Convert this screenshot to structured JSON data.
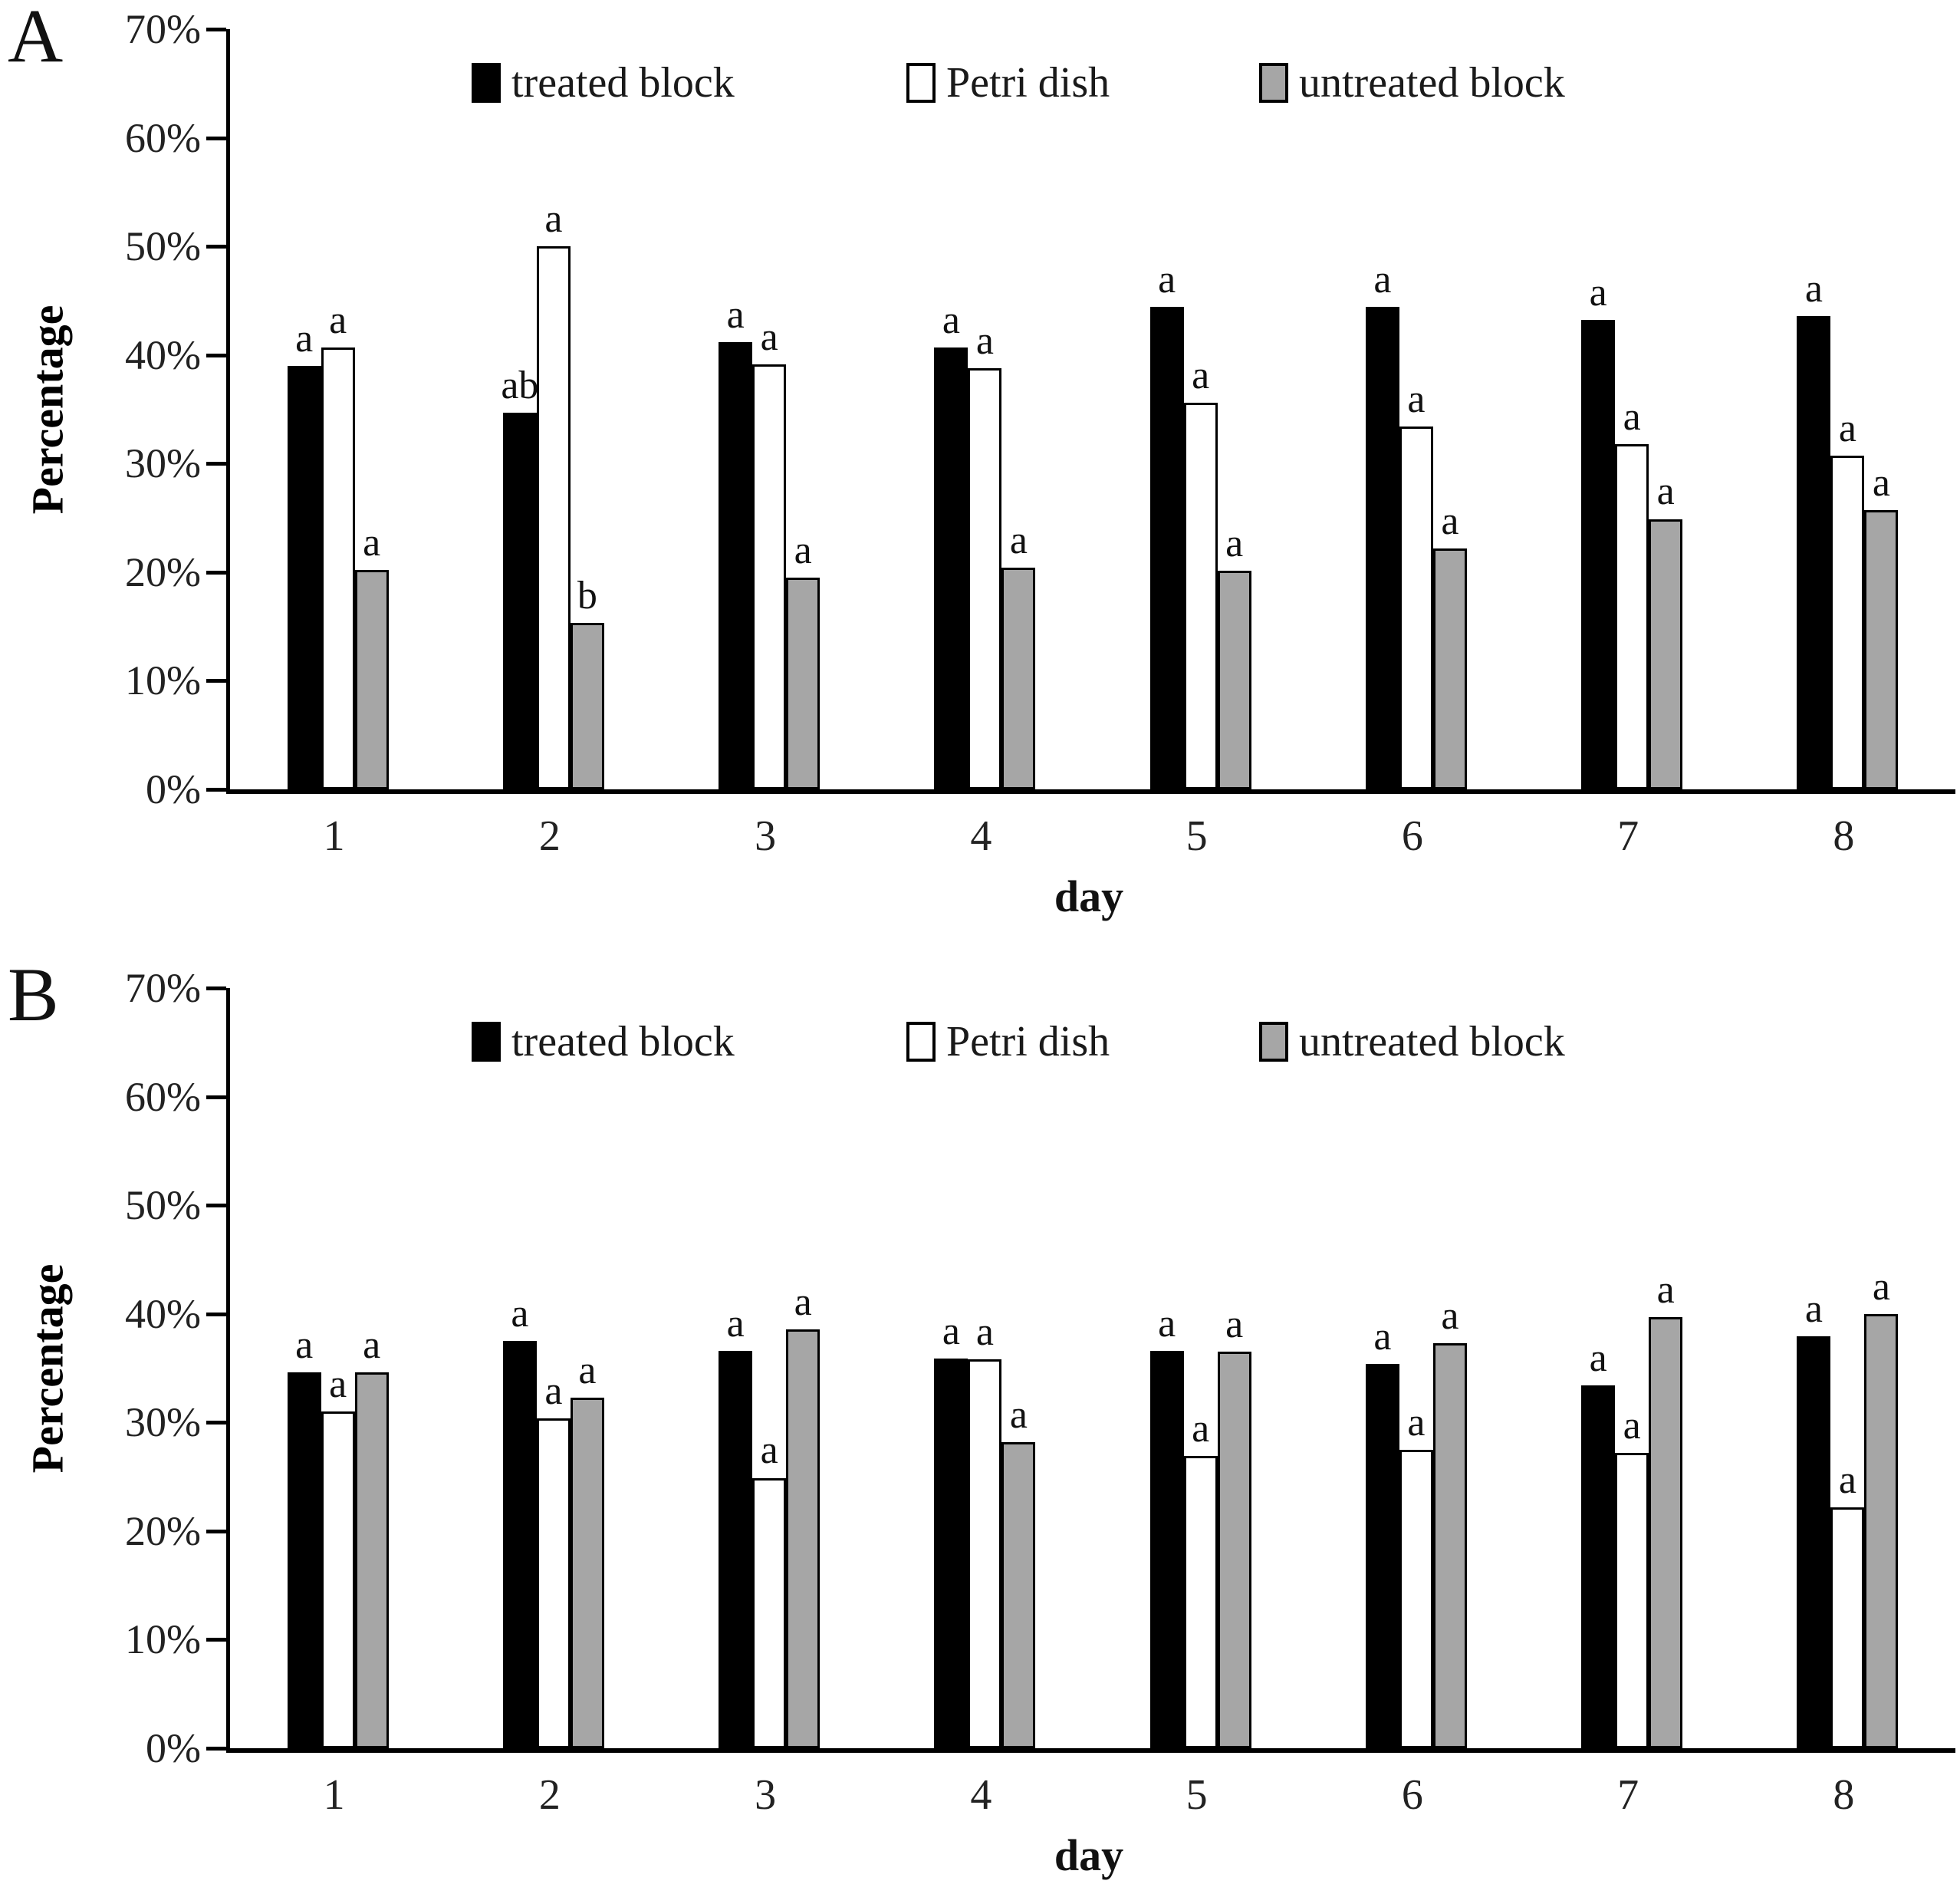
{
  "figure_title": "",
  "chart_data": [
    {
      "panel": "A",
      "type": "bar",
      "xlabel": "day",
      "ylabel": "Percentage",
      "ylim": [
        0,
        70
      ],
      "ytick_step": 10,
      "yticks": [
        "70%",
        "60%",
        "50%",
        "40%",
        "30%",
        "20%",
        "10%",
        "0%"
      ],
      "categories": [
        "1",
        "2",
        "3",
        "4",
        "5",
        "6",
        "7",
        "8"
      ],
      "grid": false,
      "legend_position": "top-center-inside",
      "series": [
        {
          "name": "treated block",
          "color": "#000000",
          "values": [
            39.0,
            34.7,
            41.2,
            40.7,
            44.4,
            44.4,
            43.2,
            43.6
          ],
          "letters": [
            "a",
            "ab",
            "a",
            "a",
            "a",
            "a",
            "a",
            "a"
          ]
        },
        {
          "name": "Petri dish",
          "color": "#ffffff",
          "values": [
            40.7,
            50.0,
            39.1,
            38.8,
            35.6,
            33.4,
            31.8,
            30.7
          ],
          "letters": [
            "a",
            "a",
            "a",
            "a",
            "a",
            "a",
            "a",
            "a"
          ]
        },
        {
          "name": "untreated block",
          "color": "#a6a6a6",
          "values": [
            20.2,
            15.3,
            19.5,
            20.4,
            20.1,
            22.2,
            24.9,
            25.7
          ],
          "letters": [
            "a",
            "b",
            "a",
            "a",
            "a",
            "a",
            "a",
            "a"
          ]
        }
      ]
    },
    {
      "panel": "B",
      "type": "bar",
      "xlabel": "day",
      "ylabel": "Percentage",
      "ylim": [
        0,
        70
      ],
      "ytick_step": 10,
      "yticks": [
        "70%",
        "60%",
        "50%",
        "40%",
        "30%",
        "20%",
        "10%",
        "0%"
      ],
      "categories": [
        "1",
        "2",
        "3",
        "4",
        "5",
        "6",
        "7",
        "8"
      ],
      "grid": false,
      "legend_position": "top-center-inside",
      "series": [
        {
          "name": "treated block",
          "color": "#000000",
          "values": [
            34.6,
            37.5,
            36.6,
            35.9,
            36.6,
            35.4,
            33.4,
            37.9
          ],
          "letters": [
            "a",
            "a",
            "a",
            "a",
            "a",
            "a",
            "a",
            "a"
          ]
        },
        {
          "name": "Petri dish",
          "color": "#ffffff",
          "values": [
            31.0,
            30.4,
            24.9,
            35.8,
            26.9,
            27.5,
            27.2,
            22.2
          ],
          "letters": [
            "a",
            "a",
            "a",
            "a",
            "a",
            "a",
            "a",
            "a"
          ]
        },
        {
          "name": "untreated block",
          "color": "#a6a6a6",
          "values": [
            34.6,
            32.3,
            38.6,
            28.2,
            36.5,
            37.3,
            39.7,
            40.0
          ],
          "letters": [
            "a",
            "a",
            "a",
            "a",
            "a",
            "a",
            "a",
            "a"
          ]
        }
      ]
    }
  ]
}
